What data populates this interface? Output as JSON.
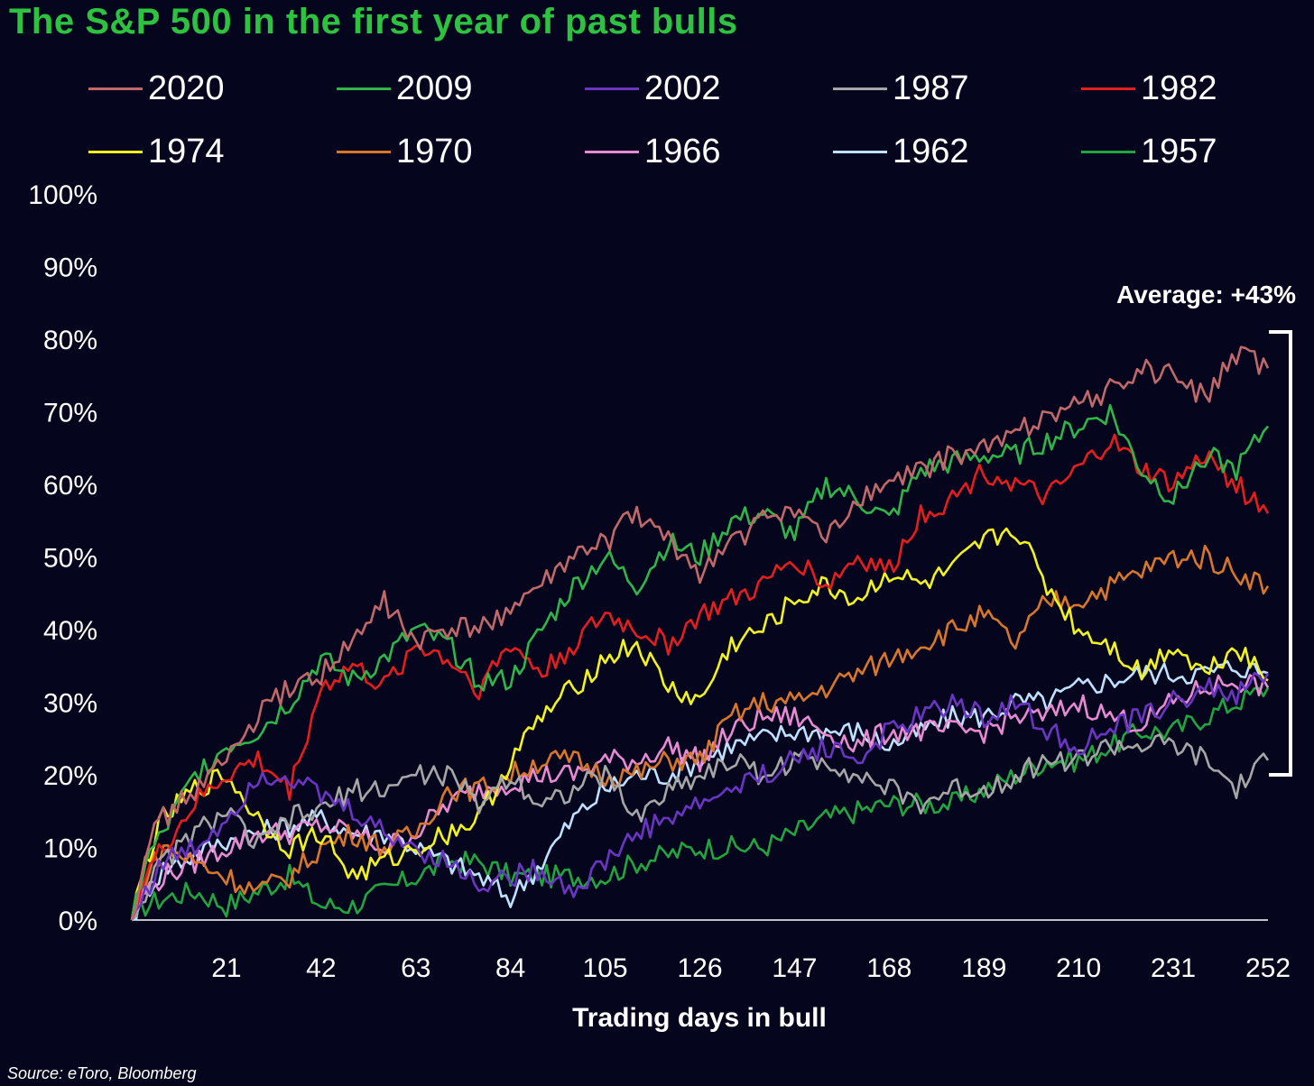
{
  "title": "The S&P 500 in the first year of past bulls",
  "source": "Source: eToro, Bloomberg",
  "annotation": "Average: +43%",
  "colors": {
    "title": "#2ec241",
    "background": "#05061d",
    "axis": "#ffffff"
  },
  "chart_data": {
    "type": "line",
    "xlabel": "Trading days in bull",
    "ylabel": "",
    "xlim": [
      0,
      252
    ],
    "ylim": [
      0,
      100
    ],
    "x_ticks": [
      21,
      42,
      63,
      84,
      105,
      126,
      147,
      168,
      189,
      210,
      231,
      252
    ],
    "y_ticks": [
      "0%",
      "10%",
      "20%",
      "30%",
      "40%",
      "50%",
      "60%",
      "70%",
      "80%",
      "90%",
      "100%"
    ],
    "grid": false,
    "legend_position": "top",
    "annotation_bracket": {
      "y_low": 20,
      "y_high": 80,
      "label": "Average: +43%"
    },
    "x": [
      0,
      3,
      7,
      14,
      21,
      28,
      35,
      42,
      49,
      56,
      63,
      70,
      77,
      84,
      91,
      98,
      105,
      112,
      119,
      126,
      133,
      140,
      147,
      154,
      161,
      168,
      175,
      182,
      189,
      196,
      203,
      210,
      217,
      224,
      231,
      238,
      245,
      252
    ],
    "series": [
      {
        "name": "2020",
        "color": "#c0686a",
        "values": [
          0,
          10,
          14,
          18,
          22,
          28,
          32,
          34,
          38,
          44,
          38,
          40,
          40,
          43,
          46,
          50,
          52,
          56,
          52,
          48,
          52,
          55,
          57,
          52,
          58,
          60,
          62,
          64,
          65,
          67,
          70,
          71,
          73,
          76,
          75,
          72,
          78,
          76
        ]
      },
      {
        "name": "2009",
        "color": "#2fb548",
        "values": [
          0,
          8,
          12,
          20,
          24,
          26,
          30,
          36,
          33,
          36,
          40,
          38,
          33,
          33,
          40,
          46,
          50,
          46,
          52,
          50,
          55,
          56,
          53,
          60,
          58,
          55,
          62,
          63,
          64,
          64,
          66,
          68,
          70,
          62,
          58,
          64,
          62,
          68
        ]
      },
      {
        "name": "2002",
        "color": "#6a35c2",
        "values": [
          0,
          4,
          8,
          10,
          14,
          20,
          20,
          17,
          15,
          12,
          10,
          8,
          5,
          6,
          7,
          4,
          8,
          12,
          14,
          16,
          18,
          20,
          22,
          24,
          22,
          26,
          28,
          30,
          28,
          30,
          26,
          24,
          26,
          28,
          30,
          32,
          31,
          34
        ]
      },
      {
        "name": "1987",
        "color": "#a6a6a6",
        "values": [
          0,
          4,
          8,
          12,
          15,
          10,
          14,
          15,
          18,
          18,
          20,
          20,
          16,
          20,
          16,
          18,
          20,
          14,
          18,
          20,
          22,
          20,
          22,
          22,
          20,
          18,
          16,
          18,
          18,
          20,
          22,
          22,
          24,
          24,
          24,
          22,
          18,
          22
        ]
      },
      {
        "name": "1982",
        "color": "#e41d1d",
        "values": [
          0,
          6,
          10,
          16,
          20,
          22,
          18,
          32,
          35,
          32,
          38,
          36,
          32,
          38,
          34,
          38,
          42,
          40,
          38,
          42,
          44,
          46,
          50,
          46,
          50,
          48,
          56,
          58,
          62,
          60,
          58,
          62,
          66,
          62,
          60,
          64,
          60,
          56
        ]
      },
      {
        "name": "1974",
        "color": "#f2f21f",
        "values": [
          0,
          8,
          14,
          18,
          20,
          14,
          10,
          12,
          6,
          8,
          10,
          12,
          14,
          22,
          28,
          32,
          36,
          38,
          32,
          30,
          38,
          40,
          44,
          46,
          44,
          48,
          46,
          48,
          52,
          54,
          46,
          40,
          38,
          34,
          38,
          34,
          38,
          33
        ]
      },
      {
        "name": "1970",
        "color": "#d8772a",
        "values": [
          0,
          6,
          10,
          8,
          6,
          4,
          6,
          10,
          12,
          10,
          12,
          18,
          18,
          20,
          22,
          22,
          20,
          20,
          22,
          22,
          28,
          30,
          30,
          32,
          34,
          36,
          38,
          40,
          42,
          38,
          44,
          44,
          46,
          48,
          50,
          50,
          48,
          46
        ]
      },
      {
        "name": "1966",
        "color": "#e88ad2",
        "values": [
          0,
          4,
          6,
          8,
          10,
          12,
          12,
          13,
          12,
          10,
          12,
          16,
          18,
          19,
          20,
          20,
          22,
          22,
          24,
          22,
          26,
          28,
          28,
          26,
          24,
          26,
          26,
          26,
          26,
          28,
          28,
          30,
          28,
          27,
          30,
          32,
          33,
          32
        ]
      },
      {
        "name": "1962",
        "color": "#bfe0ff",
        "values": [
          0,
          4,
          7,
          9,
          11,
          12,
          13,
          14,
          12,
          12,
          10,
          8,
          6,
          3,
          8,
          14,
          18,
          20,
          20,
          22,
          24,
          25,
          26,
          26,
          26,
          24,
          26,
          28,
          28,
          30,
          30,
          32,
          33,
          34,
          34,
          34,
          35,
          34
        ]
      },
      {
        "name": "1957",
        "color": "#22a53e",
        "values": [
          0,
          2,
          3,
          4,
          2,
          4,
          6,
          2,
          2,
          4,
          6,
          8,
          8,
          6,
          6,
          6,
          6,
          8,
          9,
          10,
          10,
          10,
          12,
          14,
          15,
          16,
          16,
          16,
          18,
          20,
          22,
          22,
          24,
          26,
          26,
          28,
          30,
          32
        ]
      }
    ]
  }
}
